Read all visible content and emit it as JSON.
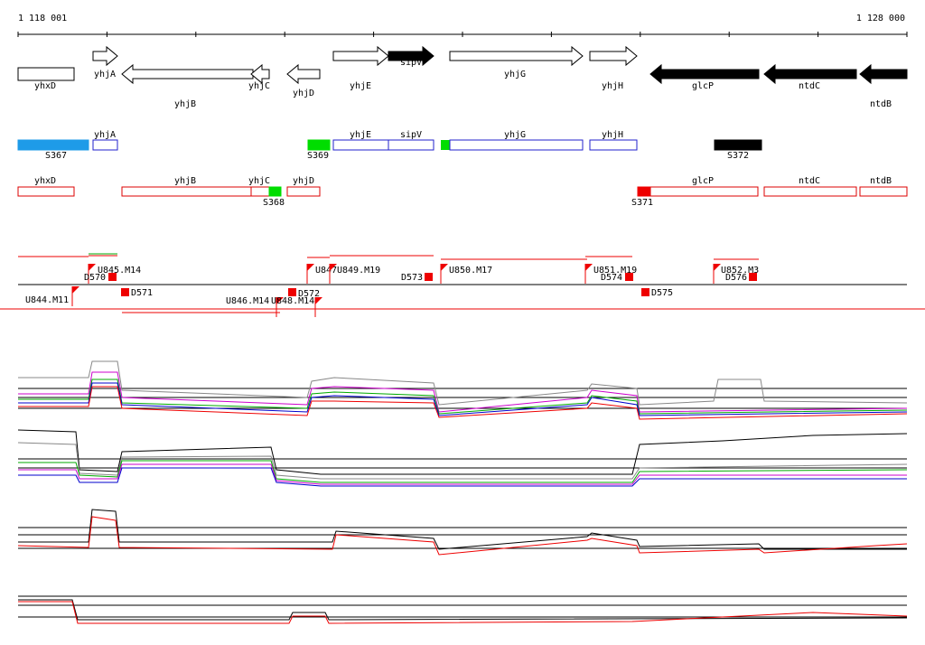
{
  "ruler": {
    "start": "1 118 001",
    "end": "1 128 000"
  },
  "gene_row": [
    {
      "label": "yhxD"
    },
    {
      "label": "yhjA"
    },
    {
      "label": "yhjB"
    },
    {
      "label": "yhjC"
    },
    {
      "label": "yhjD"
    },
    {
      "label": "yhjE"
    },
    {
      "label": "sipV"
    },
    {
      "label": "yhjG"
    },
    {
      "label": "yhjH"
    },
    {
      "label": "glcP"
    },
    {
      "label": "ntdC"
    },
    {
      "label": "ntdB"
    }
  ],
  "region_row": [
    {
      "label": "S367"
    },
    {
      "label": "yhjA"
    },
    {
      "label": "S369"
    },
    {
      "label": "yhjE"
    },
    {
      "label": "sipV"
    },
    {
      "label": "yhjG"
    },
    {
      "label": "yhjH"
    },
    {
      "label": "S372"
    }
  ],
  "annotation_row": [
    {
      "label": "yhxD"
    },
    {
      "label": "yhjB"
    },
    {
      "label": "yhjC"
    },
    {
      "label": "S368"
    },
    {
      "label": "yhjD"
    },
    {
      "label": "S371"
    },
    {
      "label": "glcP"
    },
    {
      "label": "ntdC"
    },
    {
      "label": "ntdB"
    }
  ],
  "segment_row": [
    {
      "label": "U845.M14"
    },
    {
      "label": "D570"
    },
    {
      "label": "U844.M11"
    },
    {
      "label": "D571"
    },
    {
      "label": "U847"
    },
    {
      "label": "U849.M19"
    },
    {
      "label": "D572"
    },
    {
      "label": "U846.M14"
    },
    {
      "label": "U848.M14"
    },
    {
      "label": "D573"
    },
    {
      "label": "U850.M17"
    },
    {
      "label": "U851.M19"
    },
    {
      "label": "D574"
    },
    {
      "label": "D575"
    },
    {
      "label": "U852.M3"
    },
    {
      "label": "D576"
    }
  ]
}
